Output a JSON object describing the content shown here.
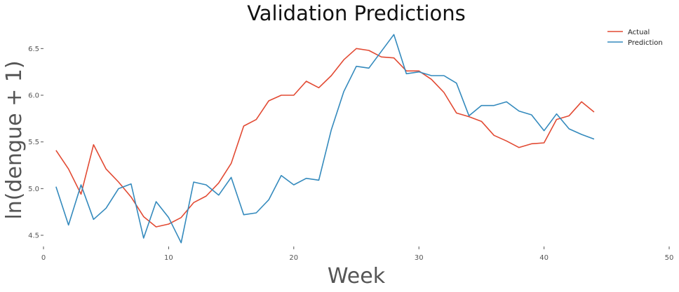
{
  "chart_data": {
    "type": "line",
    "title": "Validation Predictions",
    "xlabel": "Week",
    "ylabel": "ln(dengue + 1)",
    "xlim": [
      0,
      50
    ],
    "ylim": [
      4.38,
      6.72
    ],
    "xticks": [
      0,
      10,
      20,
      30,
      40,
      50
    ],
    "yticks": [
      4.5,
      5.0,
      5.5,
      6.0,
      6.5
    ],
    "xtick_labels": [
      "0",
      "10",
      "20",
      "30",
      "40",
      "50"
    ],
    "ytick_labels": [
      "4.5",
      "5.0",
      "5.5",
      "6.0",
      "6.5"
    ],
    "grid": false,
    "legend_position": "top-right",
    "x": [
      1,
      2,
      3,
      4,
      5,
      6,
      7,
      8,
      9,
      10,
      11,
      12,
      13,
      14,
      15,
      16,
      17,
      18,
      19,
      20,
      21,
      22,
      23,
      24,
      25,
      26,
      27,
      28,
      29,
      30,
      31,
      32,
      33,
      34,
      35,
      36,
      37,
      38,
      39,
      40,
      41,
      42,
      43,
      44
    ],
    "series": [
      {
        "name": "Actual",
        "color": "#E24A33",
        "values": [
          5.41,
          5.21,
          4.94,
          5.47,
          5.21,
          5.07,
          4.91,
          4.7,
          4.59,
          4.62,
          4.69,
          4.85,
          4.92,
          5.06,
          5.27,
          5.67,
          5.74,
          5.94,
          6.0,
          6.0,
          6.15,
          6.08,
          6.21,
          6.38,
          6.5,
          6.48,
          6.41,
          6.4,
          6.26,
          6.26,
          6.17,
          6.03,
          5.81,
          5.77,
          5.72,
          5.57,
          5.51,
          5.44,
          5.48,
          5.49,
          5.74,
          5.78,
          5.93,
          5.82
        ]
      },
      {
        "name": "Prediction",
        "color": "#348ABD",
        "values": [
          5.02,
          4.61,
          5.04,
          4.67,
          4.79,
          5.0,
          5.05,
          4.47,
          4.86,
          4.69,
          4.42,
          5.07,
          5.04,
          4.93,
          5.12,
          4.72,
          4.74,
          4.88,
          5.14,
          5.04,
          5.11,
          5.09,
          5.63,
          6.04,
          6.31,
          6.29,
          6.47,
          6.65,
          6.23,
          6.25,
          6.21,
          6.21,
          6.13,
          5.78,
          5.89,
          5.89,
          5.93,
          5.83,
          5.79,
          5.62,
          5.8,
          5.64,
          5.58,
          5.53
        ]
      }
    ]
  }
}
